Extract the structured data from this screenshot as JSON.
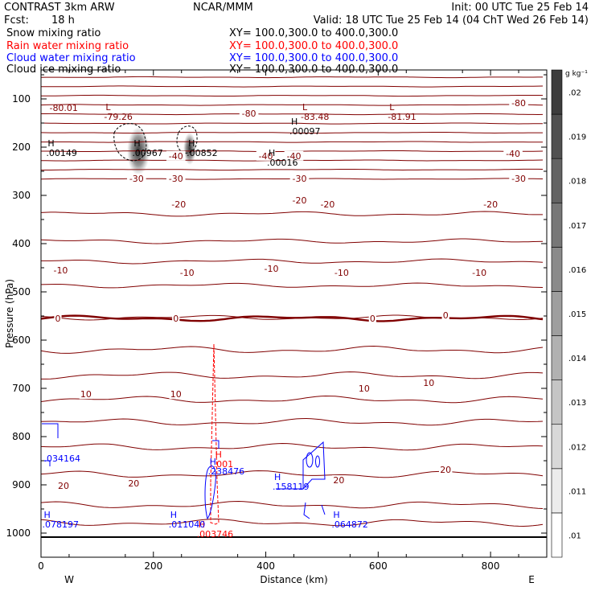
{
  "header": {
    "title_left": "CONTRAST  3km ARW",
    "fcst_label": "Fcst:",
    "fcst_value": "18 h",
    "center": "NCAR/MMM",
    "init": "Init: 00 UTC Tue 25 Feb 14",
    "valid": "Valid: 18 UTC Tue 25 Feb 14 (04 ChT Wed 26 Feb 14)"
  },
  "fields": [
    {
      "name": "Snow mixing ratio",
      "xy": "XY= 100.0,300.0 to 400.0,300.0",
      "color": "#000000"
    },
    {
      "name": "Rain water mixing ratio",
      "xy": "XY= 100.0,300.0 to 400.0,300.0",
      "color": "#ff0000"
    },
    {
      "name": "Cloud water mixing ratio",
      "xy": "XY= 100.0,300.0 to 400.0,300.0",
      "color": "#0000ff"
    },
    {
      "name": "Cloud ice mixing ratio",
      "xy": "XY= 100.0,300.0 to 400.0,300.0",
      "color": "#000000"
    }
  ],
  "colors": {
    "temperature_contour": "#800000",
    "rain": "#ff0000",
    "cloud_water": "#0000ff",
    "axis": "#000000"
  },
  "chart_data": {
    "type": "heatmap",
    "xlabel": "Distance (km)",
    "ylabel": "Pressure (hPa)",
    "xlim": [
      0,
      900
    ],
    "ylim": [
      1050,
      40
    ],
    "x_ticks": [
      0,
      200,
      400,
      600,
      800
    ],
    "y_ticks": [
      100,
      200,
      300,
      400,
      500,
      600,
      700,
      800,
      900,
      1000
    ],
    "endpoints": {
      "left": "W",
      "right": "E"
    },
    "colorbar": {
      "unit": "g kg⁻¹",
      "ticks": [
        ".01",
        ".011",
        ".012",
        ".013",
        ".014",
        ".015",
        ".016",
        ".017",
        ".018",
        ".019",
        ".02"
      ],
      "range": [
        0.01,
        0.021
      ]
    },
    "temperature_labels": [
      {
        "text": "-80",
        "x": 370,
        "p": 130
      },
      {
        "text": "-80",
        "x": 850,
        "p": 108
      },
      {
        "text": "-40",
        "x": 240,
        "p": 218
      },
      {
        "text": "-40",
        "x": 400,
        "p": 218
      },
      {
        "text": "-40",
        "x": 450,
        "p": 218
      },
      {
        "text": "-40",
        "x": 840,
        "p": 213
      },
      {
        "text": "-30",
        "x": 170,
        "p": 265
      },
      {
        "text": "-30",
        "x": 240,
        "p": 265
      },
      {
        "text": "-30",
        "x": 460,
        "p": 265
      },
      {
        "text": "-30",
        "x": 850,
        "p": 265
      },
      {
        "text": "-20",
        "x": 245,
        "p": 318
      },
      {
        "text": "-20",
        "x": 460,
        "p": 310
      },
      {
        "text": "-20",
        "x": 510,
        "p": 318
      },
      {
        "text": "-20",
        "x": 800,
        "p": 318
      },
      {
        "text": "-10",
        "x": 35,
        "p": 455
      },
      {
        "text": "-10",
        "x": 260,
        "p": 460
      },
      {
        "text": "-10",
        "x": 410,
        "p": 452
      },
      {
        "text": "-10",
        "x": 535,
        "p": 460
      },
      {
        "text": "-10",
        "x": 780,
        "p": 460
      },
      {
        "text": "0",
        "x": 30,
        "p": 555
      },
      {
        "text": "0",
        "x": 240,
        "p": 555
      },
      {
        "text": "0",
        "x": 590,
        "p": 555
      },
      {
        "text": "0",
        "x": 720,
        "p": 548
      },
      {
        "text": "10",
        "x": 80,
        "p": 712
      },
      {
        "text": "10",
        "x": 240,
        "p": 712
      },
      {
        "text": "10",
        "x": 575,
        "p": 700
      },
      {
        "text": "10",
        "x": 690,
        "p": 688
      },
      {
        "text": "20",
        "x": 40,
        "p": 902
      },
      {
        "text": "20",
        "x": 165,
        "p": 897
      },
      {
        "text": "20",
        "x": 530,
        "p": 890
      },
      {
        "text": "20",
        "x": 720,
        "p": 868
      }
    ],
    "extrema": [
      {
        "kind": "L",
        "value": "-79.26",
        "x": 115,
        "p": 130,
        "color": "#800000"
      },
      {
        "kind": "L",
        "value": "-83.48",
        "x": 465,
        "p": 130,
        "color": "#800000"
      },
      {
        "kind": "L",
        "value": "-81.91",
        "x": 620,
        "p": 130,
        "color": "#800000"
      },
      {
        "kind": "",
        "value": "-80.01",
        "x": 15,
        "p": 112,
        "color": "#800000"
      },
      {
        "kind": "H",
        "value": ".00097",
        "x": 445,
        "p": 160,
        "color": "#000000"
      },
      {
        "kind": "H",
        "value": ".00149",
        "x": 12,
        "p": 205,
        "color": "#000000"
      },
      {
        "kind": "H",
        "value": ".00967",
        "x": 165,
        "p": 205,
        "color": "#000000"
      },
      {
        "kind": "H",
        "value": ".00852",
        "x": 262,
        "p": 205,
        "color": "#000000"
      },
      {
        "kind": "H",
        "value": ".00016",
        "x": 405,
        "p": 225,
        "color": "#000000"
      },
      {
        "kind": "H",
        "value": ".001",
        "x": 310,
        "p": 850,
        "color": "#ff0000"
      },
      {
        "kind": "H",
        "value": ".003746",
        "x": 280,
        "p": 995,
        "color": "#ff0000"
      },
      {
        "kind": "",
        "value": ".034164",
        "x": 5,
        "p": 838,
        "color": "#0000ff"
      },
      {
        "kind": "H",
        "value": ".238476",
        "x": 300,
        "p": 865,
        "color": "#0000ff"
      },
      {
        "kind": "H",
        "value": ".158119",
        "x": 415,
        "p": 897,
        "color": "#0000ff"
      },
      {
        "kind": "H",
        "value": ".078197",
        "x": 5,
        "p": 975,
        "color": "#0000ff"
      },
      {
        "kind": "H",
        "value": ".011040",
        "x": 230,
        "p": 975,
        "color": "#0000ff"
      },
      {
        "kind": "H",
        "value": ".064872",
        "x": 520,
        "p": 975,
        "color": "#0000ff"
      }
    ]
  }
}
